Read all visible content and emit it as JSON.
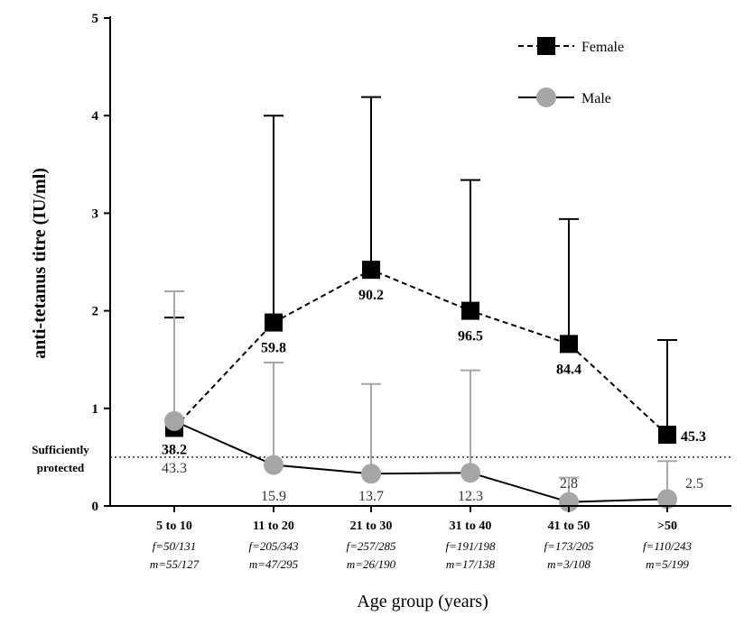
{
  "chart_data": {
    "type": "line",
    "xlabel": "Age group (years)",
    "ylabel": "anti-tetanus titre (IU/ml)",
    "ylim": [
      0,
      5
    ],
    "yticks": [
      0,
      1,
      2,
      3,
      4,
      5
    ],
    "categories": [
      "5 to 10",
      "11 to 20",
      "21 to 30",
      "31 to 40",
      "41 to 50",
      ">50"
    ],
    "category_counts": [
      {
        "f": "f=50/131",
        "m": "m=55/127"
      },
      {
        "f": "f=205/343",
        "m": "m=47/295"
      },
      {
        "f": "f=257/285",
        "m": "m=26/190"
      },
      {
        "f": "f=191/198",
        "m": "m=17/138"
      },
      {
        "f": "f=173/205",
        "m": "m=3/108"
      },
      {
        "f": "f=110/243",
        "m": "m=5/199"
      }
    ],
    "threshold": {
      "value": 0.5,
      "label_line1": "Sufficiently",
      "label_line2": "protected"
    },
    "legend": {
      "position": "top-right"
    },
    "series": [
      {
        "name": "Female",
        "marker": "square",
        "line": "dashed",
        "color": "#000000",
        "values": [
          0.8,
          1.88,
          2.42,
          2.0,
          1.66,
          0.73
        ],
        "error_upper": [
          1.93,
          4.0,
          4.19,
          3.34,
          2.94,
          1.7
        ],
        "labels": [
          "38.2",
          "59.8",
          "90.2",
          "96.5",
          "84.4",
          "45.3"
        ]
      },
      {
        "name": "Male",
        "marker": "circle",
        "line": "solid",
        "color": "#a6a6a6",
        "values": [
          0.87,
          0.42,
          0.33,
          0.34,
          0.04,
          0.07
        ],
        "error_upper": [
          2.2,
          1.47,
          1.25,
          1.39,
          0.29,
          0.46
        ],
        "labels": [
          "43.3",
          "15.9",
          "13.7",
          "12.3",
          "2.8",
          "2.5"
        ]
      }
    ]
  }
}
